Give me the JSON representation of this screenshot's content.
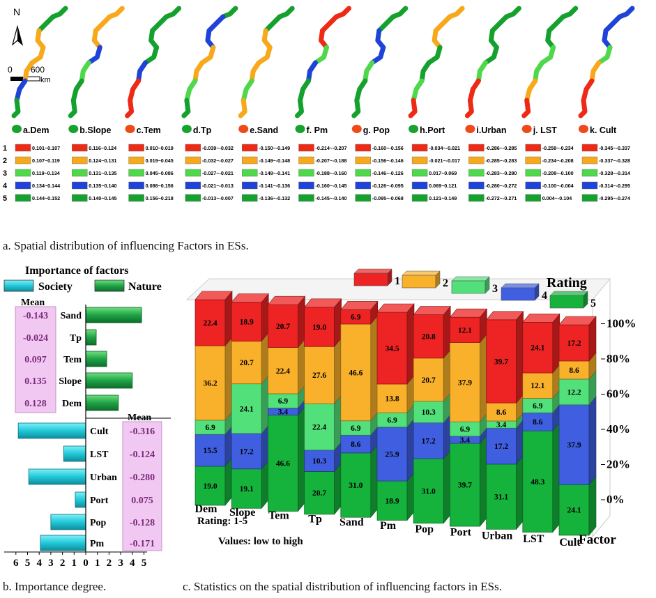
{
  "panel_a": {
    "caption": "a. Spatial distribution of influencing Factors in ESs.",
    "north_label": "N",
    "scale_zero": "0",
    "scale_600": "600",
    "scale_unit": "km",
    "row_labels": [
      "1",
      "2",
      "3",
      "4",
      "5"
    ],
    "map_colors": [
      "#ee2a16",
      "#f7a81b",
      "#4ed84a",
      "#1f43d8",
      "#15a12d"
    ],
    "maps": [
      {
        "title": "a.Dem",
        "colors": [
          4,
          4,
          1,
          1,
          1,
          3,
          4
        ],
        "ranges": [
          "0.101~0.107",
          "0.107~0.119",
          "0.119~0.134",
          "0.134~0.144",
          "0.144~0.152"
        ]
      },
      {
        "title": "b.Slope",
        "colors": [
          1,
          1,
          1,
          3,
          2,
          4,
          4
        ],
        "ranges": [
          "0.116~0.124",
          "0.124~0.131",
          "0.131~0.135",
          "0.135~0.140",
          "0.140~0.145"
        ]
      },
      {
        "title": "c.Tem",
        "colors": [
          4,
          4,
          4,
          4,
          3,
          0,
          0
        ],
        "ranges": [
          "0.010~0.019",
          "0.019~0.045",
          "0.045~0.086",
          "0.086~0.156",
          "0.156~0.218"
        ]
      },
      {
        "title": "d.Tp",
        "colors": [
          4,
          3,
          3,
          1,
          1,
          2,
          4
        ],
        "ranges": [
          "-0.039~-0.032",
          "-0.032~-0.027",
          "-0.027~-0.021",
          "-0.021~-0.013",
          "-0.013~-0.007"
        ]
      },
      {
        "title": "e.Sand",
        "colors": [
          4,
          4,
          1,
          1,
          1,
          2,
          1
        ],
        "ranges": [
          "-0.150~-0.149",
          "-0.149~-0.148",
          "-0.148~-0.141",
          "-0.141~-0.136",
          "-0.136~-0.132"
        ]
      },
      {
        "title": "f. Pm",
        "colors": [
          0,
          0,
          0,
          2,
          3,
          4,
          4
        ],
        "ranges": [
          "-0.214~-0.207",
          "-0.207~-0.188",
          "-0.188~-0.160",
          "-0.160~-0.145",
          "-0.145~-0.140"
        ]
      },
      {
        "title": "g. Pop",
        "colors": [
          4,
          4,
          3,
          3,
          2,
          4,
          4
        ],
        "ranges": [
          "-0.160~-0.156",
          "-0.156~-0.146",
          "-0.146~-0.126",
          "-0.126~-0.095",
          "-0.095~-0.068"
        ]
      },
      {
        "title": "h.Port",
        "colors": [
          1,
          1,
          1,
          4,
          4,
          2,
          0
        ],
        "ranges": [
          "-0.034~-0.021",
          "-0.021~-0.017",
          "0.017~0.069",
          "0.069~0.121",
          "0.121~0.149"
        ]
      },
      {
        "title": "i.Urban",
        "colors": [
          4,
          4,
          4,
          4,
          2,
          0,
          0
        ],
        "ranges": [
          "-0.286~-0.285",
          "-0.285~-0.283",
          "-0.283~-0.280",
          "-0.280~-0.272",
          "-0.272~-0.271"
        ]
      },
      {
        "title": "j. LST",
        "colors": [
          4,
          4,
          4,
          2,
          2,
          1,
          0
        ],
        "ranges": [
          "-0.258~-0.234",
          "-0.234~-0.208",
          "-0.208~-0.100",
          "-0.100~-0.004",
          "0.004~-0.104"
        ]
      },
      {
        "title": "k. Cult",
        "colors": [
          3,
          3,
          3,
          2,
          1,
          0,
          0
        ],
        "ranges": [
          "-0.345~-0.337",
          "-0.337~-0.328",
          "-0.328~-0.314",
          "-0.314~-0.295",
          "-0.295~-0.274"
        ]
      }
    ]
  },
  "chart_data": [
    {
      "type": "bar",
      "title": "Importance of factors",
      "caption": "b. Importance degree.",
      "legend": [
        "Society",
        "Nature"
      ],
      "mean_label": "Mean",
      "xlim": [
        0,
        6
      ],
      "ticks": [
        "6",
        "5",
        "4",
        "3",
        "2",
        "1",
        "0",
        "1",
        "2",
        "3",
        "4",
        "5"
      ],
      "series": [
        {
          "name": "Nature",
          "color": "#1fa347",
          "categories": [
            "Sand",
            "Tp",
            "Tem",
            "Slope",
            "Dem"
          ],
          "values": [
            4.8,
            0.9,
            1.8,
            4.0,
            2.8
          ],
          "means": [
            "-0.143",
            "-0.024",
            "0.097",
            "0.135",
            "0.128"
          ]
        },
        {
          "name": "Society",
          "color": "#22c8d8",
          "categories": [
            "Cult",
            "LST",
            "Urban",
            "Port",
            "Pop",
            "Pm"
          ],
          "values": [
            5.8,
            1.9,
            4.9,
            0.9,
            3.0,
            3.9
          ],
          "means": [
            "-0.316",
            "-0.124",
            "-0.280",
            "0.075",
            "-0.128",
            "-0.171"
          ]
        }
      ]
    },
    {
      "type": "bar",
      "subtype": "stacked-100-percent-3d",
      "caption": "c. Statistics on the spatial distribution of influencing factors in ESs.",
      "legend_title": "Rating",
      "categories": [
        "Dem",
        "Slope",
        "Tem",
        "Tp",
        "Sand",
        "Pm",
        "Pop",
        "Port",
        "Urban",
        "LST",
        "Cult"
      ],
      "series": [
        {
          "name": "5",
          "color": "#15b23c",
          "values": [
            19.0,
            19.1,
            46.6,
            20.7,
            31.0,
            18.9,
            31.0,
            39.7,
            31.1,
            48.3,
            24.1
          ]
        },
        {
          "name": "4",
          "color": "#3f5fe0",
          "values": [
            15.5,
            17.2,
            3.4,
            10.3,
            8.6,
            25.9,
            17.2,
            3.4,
            17.2,
            8.6,
            37.9
          ]
        },
        {
          "name": "3",
          "color": "#52e07a",
          "values": [
            6.9,
            24.1,
            6.9,
            22.4,
            6.9,
            6.9,
            10.3,
            6.9,
            3.4,
            6.9,
            12.2
          ]
        },
        {
          "name": "2",
          "color": "#f9b02a",
          "values": [
            36.2,
            20.7,
            22.4,
            27.6,
            46.6,
            13.8,
            20.7,
            37.9,
            8.6,
            12.1,
            8.6
          ]
        },
        {
          "name": "1",
          "color": "#ee2323",
          "values": [
            22.4,
            18.9,
            20.7,
            19.0,
            6.9,
            34.5,
            20.8,
            12.1,
            39.7,
            24.1,
            17.2
          ]
        }
      ],
      "y_ticks": [
        "0%",
        "20%",
        "40%",
        "60%",
        "80%",
        "100%"
      ],
      "ylim": [
        0,
        100
      ],
      "xlabel": "Factor",
      "notes": [
        "Rating: 1-5",
        "Values: low to high"
      ]
    }
  ]
}
